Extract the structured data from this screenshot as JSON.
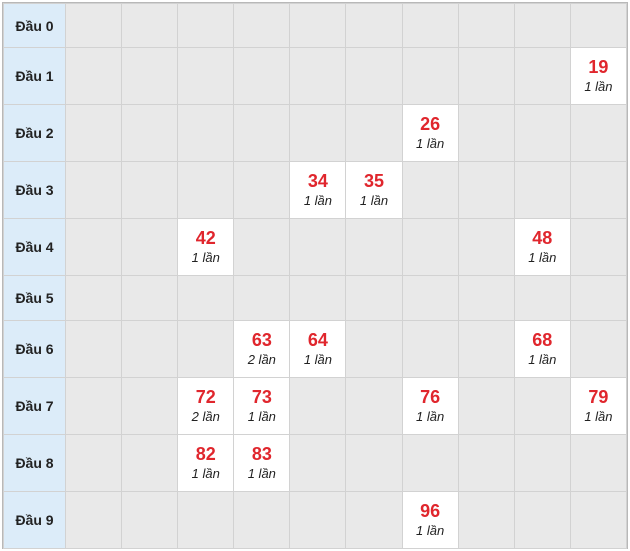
{
  "rows": [
    {
      "label": "Đầu 0",
      "cells": [
        "",
        "",
        "",
        "",
        "",
        "",
        "",
        "",
        "",
        ""
      ]
    },
    {
      "label": "Đầu 1",
      "cells": [
        "",
        "",
        "",
        "",
        "",
        "",
        "",
        "",
        "",
        {
          "num": "19",
          "count": "1 lần"
        }
      ]
    },
    {
      "label": "Đầu 2",
      "cells": [
        "",
        "",
        "",
        "",
        "",
        "",
        {
          "num": "26",
          "count": "1 lần"
        },
        "",
        "",
        ""
      ]
    },
    {
      "label": "Đầu 3",
      "cells": [
        "",
        "",
        "",
        "",
        {
          "num": "34",
          "count": "1 lần"
        },
        {
          "num": "35",
          "count": "1 lần"
        },
        "",
        "",
        "",
        ""
      ]
    },
    {
      "label": "Đầu 4",
      "cells": [
        "",
        "",
        {
          "num": "42",
          "count": "1 lần"
        },
        "",
        "",
        "",
        "",
        "",
        {
          "num": "48",
          "count": "1 lần"
        },
        ""
      ]
    },
    {
      "label": "Đầu 5",
      "cells": [
        "",
        "",
        "",
        "",
        "",
        "",
        "",
        "",
        "",
        ""
      ]
    },
    {
      "label": "Đầu 6",
      "cells": [
        "",
        "",
        "",
        {
          "num": "63",
          "count": "2 lần"
        },
        {
          "num": "64",
          "count": "1 lần"
        },
        "",
        "",
        "",
        {
          "num": "68",
          "count": "1 lần"
        },
        ""
      ]
    },
    {
      "label": "Đầu 7",
      "cells": [
        "",
        "",
        {
          "num": "72",
          "count": "2 lần"
        },
        {
          "num": "73",
          "count": "1 lần"
        },
        "",
        "",
        {
          "num": "76",
          "count": "1 lần"
        },
        "",
        "",
        {
          "num": "79",
          "count": "1 lần"
        }
      ]
    },
    {
      "label": "Đầu 8",
      "cells": [
        "",
        "",
        {
          "num": "82",
          "count": "1 lần"
        },
        {
          "num": "83",
          "count": "1 lần"
        },
        "",
        "",
        "",
        "",
        "",
        ""
      ]
    },
    {
      "label": "Đầu 9",
      "cells": [
        "",
        "",
        "",
        "",
        "",
        "",
        {
          "num": "96",
          "count": "1 lần"
        },
        "",
        "",
        ""
      ]
    }
  ]
}
